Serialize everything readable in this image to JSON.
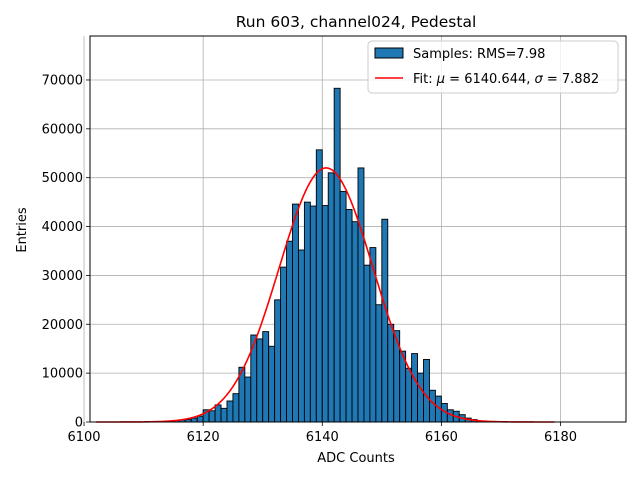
{
  "chart_data": {
    "type": "bar",
    "subtype": "histogram-with-fit",
    "title": "Run 603, channel024, Pedestal",
    "xlabel": "ADC Counts",
    "ylabel": "Entries",
    "xlim": [
      6101,
      6191
    ],
    "ylim": [
      0,
      79000
    ],
    "xticks": [
      6100,
      6120,
      6140,
      6160,
      6180
    ],
    "yticks": [
      0,
      10000,
      20000,
      30000,
      40000,
      50000,
      60000,
      70000
    ],
    "grid": true,
    "legend_position": "top-right",
    "bin_width": 1,
    "series": [
      {
        "name": "Samples: RMS=7.98",
        "kind": "histogram",
        "color": "#1f77b4",
        "edgecolor": "#000000",
        "bin_left_edges": [
          6113,
          6114,
          6115,
          6116,
          6117,
          6118,
          6119,
          6120,
          6121,
          6122,
          6123,
          6124,
          6125,
          6126,
          6127,
          6128,
          6129,
          6130,
          6131,
          6132,
          6133,
          6134,
          6135,
          6136,
          6137,
          6138,
          6139,
          6140,
          6141,
          6142,
          6143,
          6144,
          6145,
          6146,
          6147,
          6148,
          6149,
          6150,
          6151,
          6152,
          6153,
          6154,
          6155,
          6156,
          6157,
          6158,
          6159,
          6160,
          6161,
          6162,
          6163,
          6164,
          6165,
          6166,
          6167
        ],
        "values": [
          100,
          200,
          300,
          400,
          500,
          800,
          1200,
          2500,
          2300,
          3500,
          2800,
          4300,
          5800,
          11200,
          9200,
          17800,
          17000,
          18500,
          15500,
          25000,
          31700,
          37000,
          44600,
          35200,
          45000,
          44200,
          55700,
          44300,
          51000,
          68300,
          47200,
          43500,
          41000,
          52000,
          32100,
          35700,
          24000,
          41500,
          20000,
          18700,
          14500,
          11000,
          14000,
          10000,
          12800,
          6500,
          5300,
          3800,
          2500,
          2200,
          1500,
          800,
          500,
          200,
          100
        ]
      },
      {
        "name": "Fit: μ = 6140.644, σ = 7.882",
        "name_parts": {
          "prefix": "Fit: ",
          "mu_symbol": "μ",
          "mu_value": " = 6140.644, ",
          "sigma_symbol": "σ",
          "sigma_value": " = 7.882"
        },
        "kind": "gaussian-fit",
        "color": "#ff0000",
        "mu": 6140.644,
        "sigma": 7.882,
        "amplitude": 52000,
        "x_range": [
          6102,
          6179
        ]
      }
    ]
  }
}
